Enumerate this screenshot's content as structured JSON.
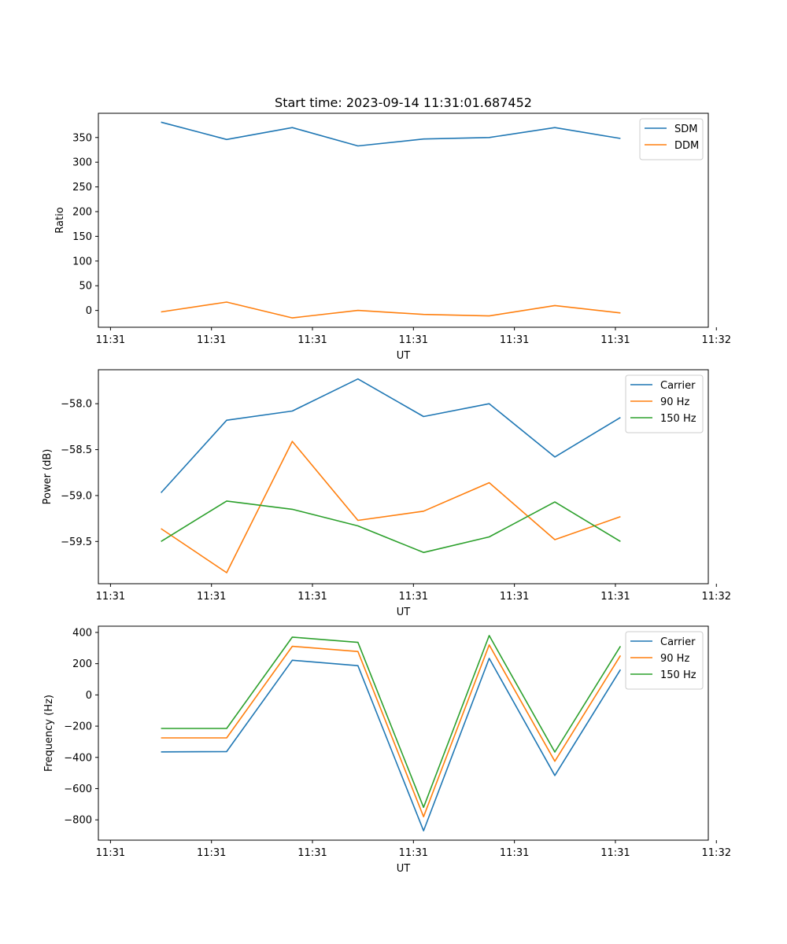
{
  "chart_data": [
    {
      "type": "line",
      "title": "Start time: 2023-09-14 11:31:01.687452",
      "xlabel": "UT",
      "ylabel": "Ratio",
      "xlim": [
        -0.12,
        5.92
      ],
      "ylim": [
        -34,
        399
      ],
      "x": [
        0.5,
        1.15,
        1.8,
        2.45,
        3.1,
        3.75,
        4.4,
        5.05
      ],
      "xticks": [
        0,
        1,
        2,
        3,
        4,
        5,
        6
      ],
      "xtick_labels": [
        "11:31",
        "11:31",
        "11:31",
        "11:31",
        "11:31",
        "11:31",
        "11:32"
      ],
      "yticks": [
        0,
        50,
        100,
        150,
        200,
        250,
        300,
        350
      ],
      "ytick_labels": [
        "0",
        "50",
        "100",
        "150",
        "200",
        "250",
        "300",
        "350"
      ],
      "legend": "top-right",
      "series": [
        {
          "name": "SDM",
          "color": "#1f77b4",
          "values": [
            381,
            346,
            370,
            333,
            347,
            350,
            370,
            348
          ]
        },
        {
          "name": "DDM",
          "color": "#ff7f0e",
          "values": [
            -3,
            17,
            -15,
            0,
            -8,
            -11,
            10,
            -5
          ]
        }
      ]
    },
    {
      "type": "line",
      "title": "",
      "xlabel": "UT",
      "ylabel": "Power (dB)",
      "xlim": [
        -0.12,
        5.92
      ],
      "ylim": [
        -59.96,
        -57.63
      ],
      "x": [
        0.5,
        1.15,
        1.8,
        2.45,
        3.1,
        3.75,
        4.4,
        5.05
      ],
      "xticks": [
        0,
        1,
        2,
        3,
        4,
        5,
        6
      ],
      "xtick_labels": [
        "11:31",
        "11:31",
        "11:31",
        "11:31",
        "11:31",
        "11:31",
        "11:32"
      ],
      "yticks": [
        -59.5,
        -59.0,
        -58.5,
        -58.0
      ],
      "ytick_labels": [
        "−59.5",
        "−59.0",
        "−58.5",
        "−58.0"
      ],
      "legend": "top-right",
      "series": [
        {
          "name": "Carrier",
          "color": "#1f77b4",
          "values": [
            -58.97,
            -58.18,
            -58.08,
            -57.73,
            -58.14,
            -58.0,
            -58.58,
            -58.15
          ]
        },
        {
          "name": "90 Hz",
          "color": "#ff7f0e",
          "values": [
            -59.36,
            -59.84,
            -58.41,
            -59.27,
            -59.17,
            -58.86,
            -59.48,
            -59.23
          ]
        },
        {
          "name": "150 Hz",
          "color": "#2ca02c",
          "values": [
            -59.5,
            -59.06,
            -59.15,
            -59.33,
            -59.62,
            -59.45,
            -59.07,
            -59.5
          ]
        }
      ]
    },
    {
      "type": "line",
      "title": "",
      "xlabel": "UT",
      "ylabel": "Frequency (Hz)",
      "xlim": [
        -0.12,
        5.92
      ],
      "ylim": [
        -930,
        440
      ],
      "x": [
        0.5,
        1.15,
        1.8,
        2.45,
        3.1,
        3.75,
        4.4,
        5.05
      ],
      "xticks": [
        0,
        1,
        2,
        3,
        4,
        5,
        6
      ],
      "xtick_labels": [
        "11:31",
        "11:31",
        "11:31",
        "11:31",
        "11:31",
        "11:31",
        "11:32"
      ],
      "yticks": [
        -800,
        -600,
        -400,
        -200,
        0,
        200,
        400
      ],
      "ytick_labels": [
        "−800",
        "−600",
        "−400",
        "−200",
        "0",
        "200",
        "400"
      ],
      "legend": "top-right",
      "series": [
        {
          "name": "Carrier",
          "color": "#1f77b4",
          "values": [
            -365,
            -363,
            222,
            187,
            -870,
            234,
            -516,
            162
          ]
        },
        {
          "name": "90 Hz",
          "color": "#ff7f0e",
          "values": [
            -275,
            -275,
            311,
            278,
            -780,
            320,
            -425,
            252
          ]
        },
        {
          "name": "150 Hz",
          "color": "#2ca02c",
          "values": [
            -215,
            -215,
            370,
            336,
            -720,
            380,
            -366,
            312
          ]
        }
      ]
    }
  ]
}
